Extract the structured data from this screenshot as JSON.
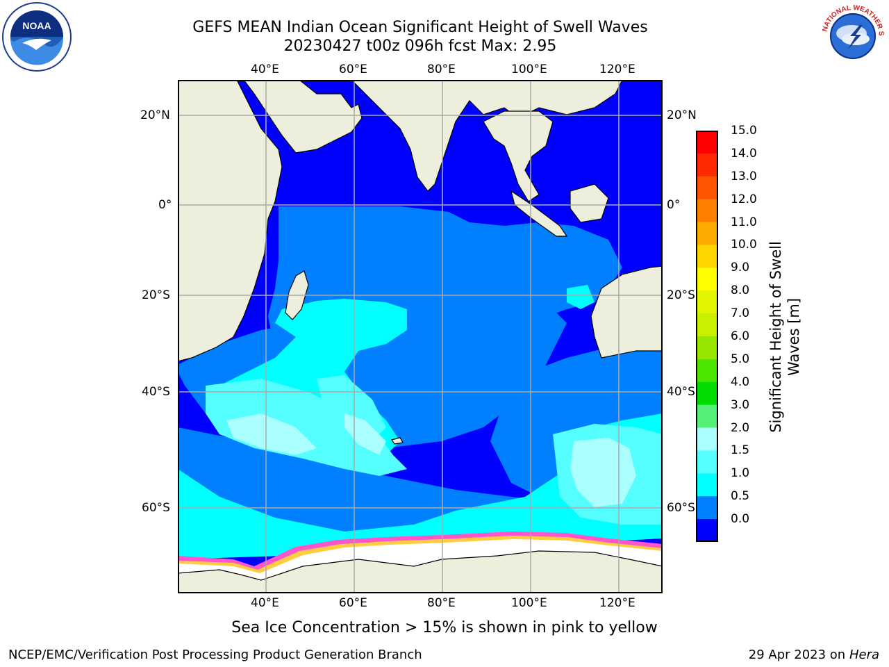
{
  "title": {
    "line1": "GEFS MEAN Indian Ocean Significant Height of Swell Waves",
    "line2": "20230427 t00z 096h fcst   Max: 2.95"
  },
  "logos": {
    "left": {
      "name": "noaa-logo",
      "text": "NOAA"
    },
    "right": {
      "name": "nws-logo",
      "text": "NATIONAL WEATHER SERVICE"
    }
  },
  "map": {
    "lon_ticks_top": [
      "40°E",
      "60°E",
      "80°E",
      "100°E",
      "120°E"
    ],
    "lon_ticks_bottom": [
      "40°E",
      "60°E",
      "80°E",
      "100°E",
      "120°E"
    ],
    "lat_ticks_left": [
      "20°N",
      "0°",
      "20°S",
      "40°S",
      "60°S"
    ],
    "lat_ticks_right": [
      "20°N",
      "0°",
      "20°S",
      "40°S",
      "60°S"
    ],
    "extent": {
      "lon": [
        20,
        130
      ],
      "lat": [
        -70,
        27
      ]
    },
    "colors": {
      "land": "#eeeedd",
      "ice": "#ffffff",
      "grid": "#aaaaaa"
    }
  },
  "colorbar": {
    "title_line1": "Significant Height of Swell",
    "title_line2": "Waves [m]",
    "labels": [
      "15.0",
      "14.0",
      "13.0",
      "12.0",
      "11.0",
      "10.0",
      "9.0",
      "8.0",
      "7.0",
      "6.0",
      "5.0",
      "4.0",
      "3.0",
      "2.0",
      "1.5",
      "1.0",
      "0.5",
      "0.0"
    ],
    "colors": [
      "#ff0000",
      "#ff2a00",
      "#ff5500",
      "#ff8000",
      "#ffaa00",
      "#ffd500",
      "#ffff00",
      "#e1f500",
      "#c8f000",
      "#96e600",
      "#4be600",
      "#00dc00",
      "#55f078",
      "#aaffff",
      "#55ffff",
      "#00ffff",
      "#0080ff",
      "#0000ff"
    ]
  },
  "caption": "Sea Ice Concentration > 15% is shown in pink to yellow",
  "footer": {
    "left": "NCEP/EMC/Verification Post Processing Product Generation Branch",
    "right_date": "29 Apr 2023 on ",
    "right_host": "Hera"
  }
}
